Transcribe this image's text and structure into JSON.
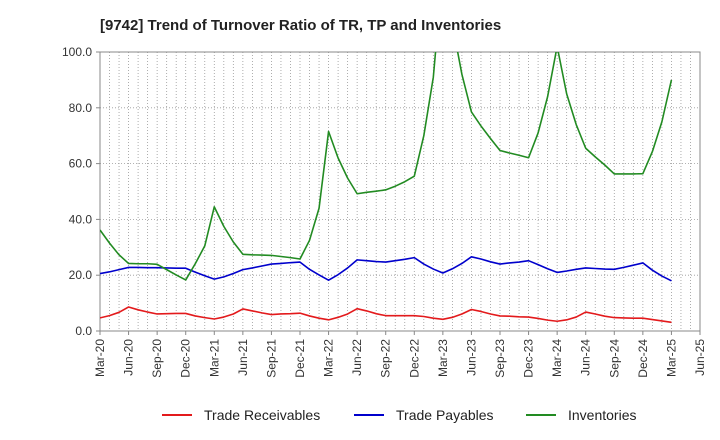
{
  "chart_data": {
    "type": "line",
    "title": "[9742]  Trend of Turnover Ratio of TR, TP and Inventories",
    "xlabel": "",
    "ylabel": "",
    "ylim": [
      0,
      100
    ],
    "yticks": [
      "0.0",
      "20.0",
      "40.0",
      "60.0",
      "80.0",
      "100.0"
    ],
    "grid": true,
    "legend_position": "bottom",
    "x_ticks": [
      "Mar-20",
      "Jun-20",
      "Sep-20",
      "Dec-20",
      "Mar-21",
      "Jun-21",
      "Sep-21",
      "Dec-21",
      "Mar-22",
      "Jun-22",
      "Sep-22",
      "Dec-22",
      "Mar-23",
      "Jun-23",
      "Sep-23",
      "Dec-23",
      "Mar-24",
      "Jun-24",
      "Sep-24",
      "Dec-24",
      "Mar-25",
      "Jun-25"
    ],
    "x": [
      "Mar-20",
      "Apr-20",
      "May-20",
      "Jun-20",
      "Jul-20",
      "Aug-20",
      "Sep-20",
      "Oct-20",
      "Nov-20",
      "Dec-20",
      "Jan-21",
      "Feb-21",
      "Mar-21",
      "Apr-21",
      "May-21",
      "Jun-21",
      "Jul-21",
      "Aug-21",
      "Sep-21",
      "Oct-21",
      "Nov-21",
      "Dec-21",
      "Jan-22",
      "Feb-22",
      "Mar-22",
      "Apr-22",
      "May-22",
      "Jun-22",
      "Jul-22",
      "Aug-22",
      "Sep-22",
      "Oct-22",
      "Nov-22",
      "Dec-22",
      "Jan-23",
      "Feb-23",
      "Mar-23",
      "Apr-23",
      "May-23",
      "Jun-23",
      "Jul-23",
      "Aug-23",
      "Sep-23",
      "Oct-23",
      "Nov-23",
      "Dec-23",
      "Jan-24",
      "Feb-24",
      "Mar-24",
      "Apr-24",
      "May-24",
      "Jun-24",
      "Jul-24",
      "Aug-24",
      "Sep-24",
      "Oct-24",
      "Nov-24",
      "Dec-24",
      "Jan-25",
      "Feb-25",
      "Mar-25"
    ],
    "series": [
      {
        "name": "Trade Receivables",
        "color": "#e31a1c",
        "values": [
          4.7,
          5.5,
          6.7,
          8.6,
          7.6,
          6.8,
          6.1,
          6.2,
          6.3,
          6.3,
          5.4,
          4.8,
          4.3,
          5.0,
          6.1,
          7.9,
          7.2,
          6.5,
          5.9,
          6.1,
          6.2,
          6.4,
          5.4,
          4.6,
          4.0,
          4.9,
          6.1,
          8.0,
          7.2,
          6.2,
          5.5,
          5.5,
          5.5,
          5.5,
          5.2,
          4.6,
          4.2,
          4.9,
          6.1,
          7.7,
          7.0,
          6.1,
          5.4,
          5.3,
          5.1,
          5.0,
          4.5,
          3.9,
          3.5,
          4.0,
          5.0,
          6.8,
          6.1,
          5.3,
          4.8,
          4.7,
          4.6,
          4.6,
          4.1,
          3.6,
          3.1
        ]
      },
      {
        "name": "Trade Payables",
        "color": "#0000cc",
        "values": [
          20.6,
          21.2,
          22.0,
          22.8,
          22.8,
          22.7,
          22.7,
          22.6,
          22.5,
          22.5,
          21.1,
          19.8,
          18.6,
          19.4,
          20.6,
          22.0,
          22.6,
          23.3,
          24.0,
          24.2,
          24.5,
          24.7,
          22.1,
          20.1,
          18.2,
          20.2,
          22.6,
          25.5,
          25.2,
          24.9,
          24.7,
          25.2,
          25.7,
          26.3,
          24.0,
          22.2,
          20.8,
          22.3,
          24.2,
          26.6,
          25.8,
          24.8,
          24.0,
          24.4,
          24.7,
          25.2,
          23.8,
          22.3,
          21.0,
          21.5,
          22.1,
          22.6,
          22.4,
          22.2,
          22.1,
          22.8,
          23.6,
          24.4,
          21.8,
          19.7,
          18.0
        ]
      },
      {
        "name": "Inventories",
        "color": "#228b22",
        "values": [
          36.2,
          31.5,
          27.3,
          24.2,
          24.1,
          24.1,
          23.9,
          22.0,
          20.1,
          18.3,
          24.1,
          30.5,
          44.5,
          37.5,
          31.9,
          27.5,
          27.3,
          27.2,
          27.1,
          26.7,
          26.3,
          25.8,
          32.5,
          44.0,
          71.5,
          62.0,
          54.8,
          49.2,
          49.7,
          50.1,
          50.6,
          51.9,
          53.5,
          55.5,
          70.0,
          91.0,
          130.0,
          110.0,
          92.0,
          78.5,
          73.5,
          69.0,
          64.7,
          63.8,
          63.0,
          62.1,
          71.0,
          84.0,
          102.0,
          85.0,
          74.0,
          65.5,
          62.4,
          59.5,
          56.3,
          56.3,
          56.3,
          56.4,
          64.3,
          75.0,
          90.0
        ]
      }
    ]
  }
}
